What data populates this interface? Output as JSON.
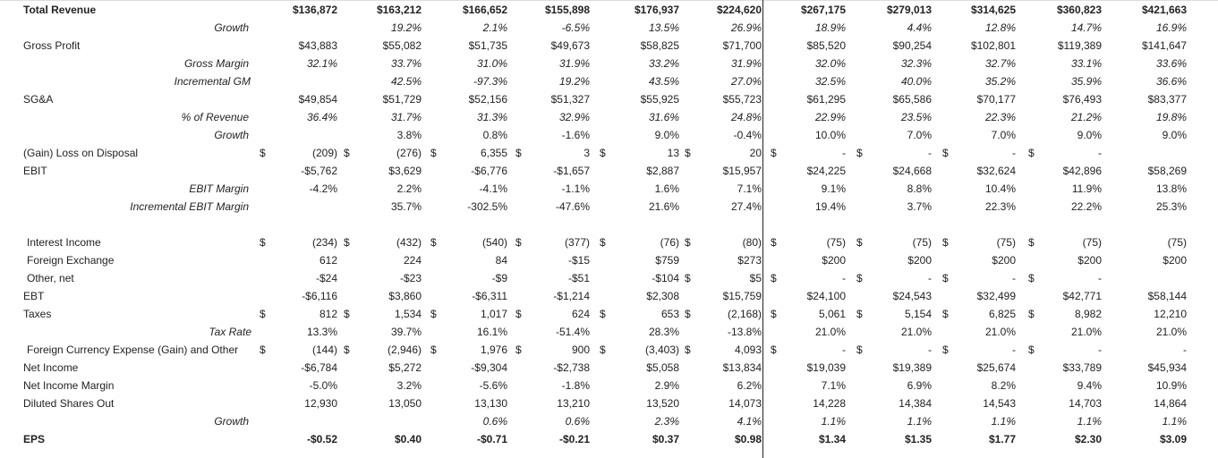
{
  "rows": [
    {
      "label": "Total Revenue",
      "style": "bold",
      "top": true,
      "cells": [
        "$136,872",
        "$163,212",
        "$166,652",
        "$155,898",
        "$176,937",
        "$224,620",
        "$267,175",
        "$279,013",
        "$314,625",
        "$360,823",
        "$421,663"
      ]
    },
    {
      "label": "Growth",
      "style": "italic-right",
      "cells": [
        "",
        "19.2%",
        "2.1%",
        "-6.5%",
        "13.5%",
        "26.9%",
        "18.9%",
        "4.4%",
        "12.8%",
        "14.7%",
        "16.9%"
      ],
      "italic": true
    },
    {
      "label": "Gross Profit",
      "cells": [
        "$43,883",
        "$55,082",
        "$51,735",
        "$49,673",
        "$58,825",
        "$71,700",
        "$85,520",
        "$90,254",
        "$102,801",
        "$119,389",
        "$141,647"
      ]
    },
    {
      "label": "Gross Margin",
      "style": "italic-right",
      "cells": [
        "32.1%",
        "33.7%",
        "31.0%",
        "31.9%",
        "33.2%",
        "31.9%",
        "32.0%",
        "32.3%",
        "32.7%",
        "33.1%",
        "33.6%"
      ],
      "italic": true
    },
    {
      "label": "Incremental GM",
      "style": "italic-right",
      "cells": [
        "",
        "42.5%",
        "-97.3%",
        "19.2%",
        "43.5%",
        "27.0%",
        "32.5%",
        "40.0%",
        "35.2%",
        "35.9%",
        "36.6%"
      ],
      "italic": true
    },
    {
      "label": "SG&A",
      "cells": [
        "$49,854",
        "$51,729",
        "$52,156",
        "$51,327",
        "$55,925",
        "$55,723",
        "$61,295",
        "$65,586",
        "$70,177",
        "$76,493",
        "$83,377"
      ]
    },
    {
      "label": "% of Revenue",
      "style": "italic-right",
      "cells": [
        "36.4%",
        "31.7%",
        "31.3%",
        "32.9%",
        "31.6%",
        "24.8%",
        "22.9%",
        "23.5%",
        "22.3%",
        "21.2%",
        "19.8%"
      ],
      "italic": true
    },
    {
      "label": "Growth",
      "style": "italic-right",
      "cells": [
        "",
        "3.8%",
        "0.8%",
        "-1.6%",
        "9.0%",
        "-0.4%",
        "10.0%",
        "7.0%",
        "7.0%",
        "9.0%",
        "9.0%"
      ]
    },
    {
      "label": "(Gain) Loss on Disposal",
      "dollar": true,
      "cells": [
        "(209)",
        "(276)",
        "6,355",
        "3",
        "13",
        "20",
        "-",
        "-",
        "-",
        "-",
        ""
      ]
    },
    {
      "label": "EBIT",
      "cells": [
        "-$5,762",
        "$3,629",
        "-$6,776",
        "-$1,657",
        "$2,887",
        "$15,957",
        "$24,225",
        "$24,668",
        "$32,624",
        "$42,896",
        "$58,269"
      ]
    },
    {
      "label": "EBIT Margin",
      "style": "italic-right",
      "cells": [
        "-4.2%",
        "2.2%",
        "-4.1%",
        "-1.1%",
        "1.6%",
        "7.1%",
        "9.1%",
        "8.8%",
        "10.4%",
        "11.9%",
        "13.8%"
      ]
    },
    {
      "label": "Incremental EBIT Margin",
      "style": "italic-right",
      "cells": [
        "",
        "35.7%",
        "-302.5%",
        "-47.6%",
        "21.6%",
        "27.4%",
        "19.4%",
        "3.7%",
        "22.3%",
        "22.2%",
        "25.3%"
      ]
    },
    {
      "label": "",
      "cells": [
        "",
        "",
        "",
        "",
        "",
        "",
        "",
        "",
        "",
        "",
        ""
      ]
    },
    {
      "label": "Interest Income",
      "dollar": true,
      "cells": [
        "(234)",
        "(432)",
        "(540)",
        "(377)",
        "(76)",
        "(80)",
        "(75)",
        "(75)",
        "(75)",
        "(75)",
        "(75)"
      ]
    },
    {
      "label": "Foreign Exchange",
      "cells": [
        "612",
        "224",
        "84",
        "-$15",
        "$759",
        "$273",
        "$200",
        "$200",
        "$200",
        "$200",
        "$200"
      ]
    },
    {
      "label": "Other, net",
      "cells": [
        "-$24",
        "-$23",
        "-$9",
        "-$51",
        "-$104",
        "$5",
        "-",
        "-",
        "-",
        "-",
        ""
      ],
      "dollarFrom": 5
    },
    {
      "label": "EBT",
      "cells": [
        "-$6,116",
        "$3,860",
        "-$6,311",
        "-$1,214",
        "$2,308",
        "$15,759",
        "$24,100",
        "$24,543",
        "$32,499",
        "$42,771",
        "$58,144"
      ]
    },
    {
      "label": "Taxes",
      "dollar": true,
      "cells": [
        "812",
        "1,534",
        "1,017",
        "624",
        "653",
        "(2,168)",
        "5,061",
        "5,154",
        "6,825",
        "8,982",
        "12,210"
      ]
    },
    {
      "label": "Tax Rate",
      "style": "italic-right",
      "cells": [
        "13.3%",
        "39.7%",
        "16.1%",
        "-51.4%",
        "28.3%",
        "-13.8%",
        "21.0%",
        "21.0%",
        "21.0%",
        "21.0%",
        "21.0%"
      ]
    },
    {
      "label": "Foreign Currency Expense (Gain) and Other",
      "dollar": true,
      "cells": [
        "(144)",
        "(2,946)",
        "1,976",
        "900",
        "(3,403)",
        "4,093",
        "-",
        "-",
        "-",
        "-",
        "-"
      ]
    },
    {
      "label": "Net Income",
      "cells": [
        "-$6,784",
        "$5,272",
        "-$9,304",
        "-$2,738",
        "$5,058",
        "$13,834",
        "$19,039",
        "$19,389",
        "$25,674",
        "$33,789",
        "$45,934"
      ]
    },
    {
      "label": "Net Income Margin",
      "cells": [
        "-5.0%",
        "3.2%",
        "-5.6%",
        "-1.8%",
        "2.9%",
        "6.2%",
        "7.1%",
        "6.9%",
        "8.2%",
        "9.4%",
        "10.9%"
      ]
    },
    {
      "label": "Diluted Shares Out",
      "cells": [
        "12,930",
        "13,050",
        "13,130",
        "13,210",
        "13,520",
        "14,073",
        "14,228",
        "14,384",
        "14,543",
        "14,703",
        "14,864"
      ]
    },
    {
      "label": "Growth",
      "style": "italic-right",
      "cells": [
        "",
        "",
        "0.6%",
        "0.6%",
        "2.3%",
        "4.1%",
        "1.1%",
        "1.1%",
        "1.1%",
        "1.1%",
        "1.1%"
      ],
      "italic": true
    },
    {
      "label": "EPS",
      "style": "bold",
      "cells": [
        "-$0.52",
        "$0.40",
        "-$0.71",
        "-$0.21",
        "$0.37",
        "$0.98",
        "$1.34",
        "$1.35",
        "$1.77",
        "$2.30",
        "$3.09"
      ]
    }
  ],
  "dollar_sign": "$"
}
